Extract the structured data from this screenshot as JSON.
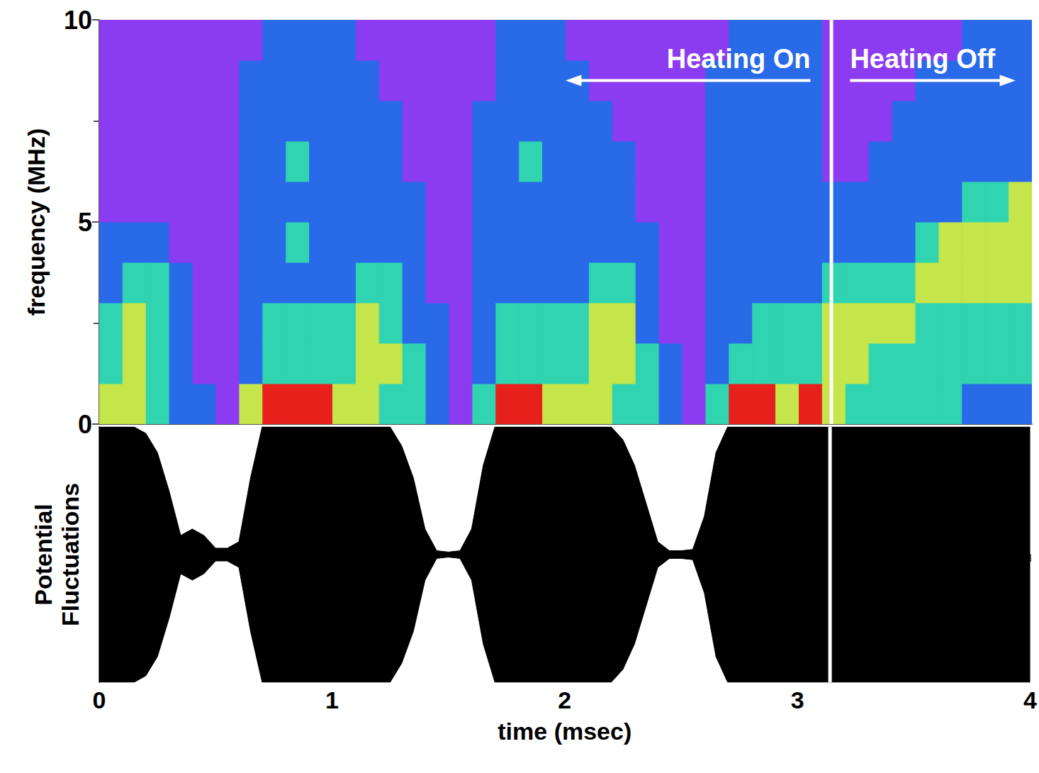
{
  "chart_data": [
    {
      "type": "heatmap",
      "ylabel": "frequency (MHz)",
      "xlim": [
        0,
        4
      ],
      "ylim": [
        0,
        10
      ],
      "yticks": [
        0,
        5,
        10
      ],
      "tick_labels": "y",
      "x_bins": [
        0,
        0.1,
        0.2,
        0.3,
        0.4,
        0.5,
        0.6,
        0.7,
        0.8,
        0.9,
        1,
        1.1,
        1.2,
        1.3,
        1.4,
        1.5,
        1.6,
        1.7,
        1.8,
        1.9,
        2,
        2.1,
        2.2,
        2.3,
        2.4,
        2.5,
        2.6,
        2.7,
        2.8,
        2.9,
        3,
        3.1,
        3.2,
        3.3,
        3.4,
        3.5,
        3.6,
        3.7,
        3.8,
        3.9,
        4
      ],
      "y_bins": [
        0,
        1,
        2,
        3,
        4,
        5,
        6,
        7,
        8,
        9,
        10
      ],
      "cells": [
        [
          3,
          2,
          2,
          1,
          1,
          0,
          0,
          0,
          0,
          0
        ],
        [
          3,
          3,
          3,
          2,
          1,
          0,
          0,
          0,
          0,
          0
        ],
        [
          2,
          2,
          2,
          2,
          1,
          0,
          0,
          0,
          0,
          0
        ],
        [
          1,
          1,
          1,
          1,
          0,
          0,
          0,
          0,
          0,
          0
        ],
        [
          1,
          0,
          0,
          0,
          0,
          0,
          0,
          0,
          0,
          0
        ],
        [
          0,
          0,
          0,
          0,
          0,
          0,
          0,
          0,
          0,
          0
        ],
        [
          3,
          1,
          1,
          1,
          1,
          1,
          1,
          1,
          1,
          0
        ],
        [
          4,
          2,
          2,
          1,
          1,
          1,
          1,
          1,
          1,
          1
        ],
        [
          4,
          2,
          2,
          1,
          2,
          1,
          2,
          1,
          1,
          1
        ],
        [
          4,
          2,
          2,
          1,
          1,
          1,
          1,
          1,
          1,
          1
        ],
        [
          3,
          2,
          2,
          1,
          1,
          1,
          1,
          1,
          1,
          1
        ],
        [
          3,
          3,
          3,
          2,
          1,
          1,
          1,
          1,
          1,
          0
        ],
        [
          2,
          3,
          2,
          2,
          1,
          1,
          1,
          1,
          0,
          0
        ],
        [
          2,
          2,
          1,
          1,
          1,
          1,
          0,
          0,
          0,
          0
        ],
        [
          1,
          1,
          1,
          0,
          0,
          0,
          0,
          0,
          0,
          0
        ],
        [
          0,
          0,
          0,
          0,
          0,
          0,
          0,
          0,
          0,
          0
        ],
        [
          2,
          1,
          1,
          1,
          1,
          1,
          1,
          1,
          0,
          0
        ],
        [
          4,
          2,
          2,
          1,
          1,
          1,
          1,
          1,
          1,
          1
        ],
        [
          4,
          2,
          2,
          1,
          1,
          1,
          2,
          1,
          1,
          1
        ],
        [
          3,
          2,
          2,
          1,
          1,
          1,
          1,
          1,
          1,
          1
        ],
        [
          3,
          2,
          2,
          1,
          1,
          1,
          1,
          1,
          1,
          0
        ],
        [
          3,
          3,
          3,
          2,
          1,
          1,
          1,
          1,
          0,
          0
        ],
        [
          2,
          3,
          3,
          2,
          1,
          1,
          1,
          0,
          0,
          0
        ],
        [
          2,
          2,
          1,
          1,
          1,
          0,
          0,
          0,
          0,
          0
        ],
        [
          1,
          1,
          0,
          0,
          0,
          0,
          0,
          0,
          0,
          0
        ],
        [
          0,
          0,
          0,
          0,
          0,
          0,
          0,
          0,
          0,
          0
        ],
        [
          2,
          1,
          1,
          1,
          1,
          1,
          1,
          1,
          1,
          0
        ],
        [
          4,
          2,
          1,
          1,
          1,
          1,
          1,
          1,
          1,
          1
        ],
        [
          4,
          2,
          2,
          1,
          1,
          1,
          1,
          1,
          1,
          1
        ],
        [
          3,
          2,
          2,
          1,
          1,
          1,
          1,
          1,
          1,
          1
        ],
        [
          4,
          2,
          2,
          1,
          1,
          1,
          1,
          1,
          1,
          1
        ],
        [
          3,
          3,
          3,
          2,
          1,
          1,
          0,
          0,
          0,
          0
        ],
        [
          2,
          3,
          3,
          2,
          1,
          1,
          0,
          0,
          0,
          0
        ],
        [
          2,
          2,
          3,
          2,
          1,
          1,
          1,
          0,
          0,
          0
        ],
        [
          2,
          2,
          3,
          2,
          1,
          1,
          1,
          1,
          0,
          0
        ],
        [
          2,
          2,
          2,
          3,
          2,
          1,
          1,
          1,
          1,
          0
        ],
        [
          2,
          2,
          2,
          3,
          3,
          1,
          1,
          1,
          1,
          0
        ],
        [
          1,
          2,
          2,
          3,
          3,
          2,
          1,
          1,
          1,
          1
        ],
        [
          1,
          2,
          2,
          3,
          3,
          2,
          1,
          1,
          1,
          1
        ],
        [
          1,
          2,
          2,
          3,
          3,
          3,
          1,
          1,
          1,
          1
        ]
      ],
      "color_range": [
        0,
        4
      ],
      "marker_line": 3.14,
      "annotations": [
        {
          "text": "Heating On",
          "arrow": [
            3.05,
            2.0
          ],
          "y": 8.5
        },
        {
          "text": "Heating Off",
          "arrow": [
            3.22,
            3.93
          ],
          "y": 8.5
        }
      ]
    },
    {
      "type": "area",
      "ylabel": "Potential Fluctuations",
      "xlabel": "time (msec)",
      "xlim": [
        0,
        4
      ],
      "ylim": [
        -1,
        1
      ],
      "xticks": [
        0,
        1,
        2,
        3,
        4
      ],
      "tick_labels": "x",
      "color": "#000000",
      "marker_line": 3.14,
      "x": [
        0,
        0.05,
        0.1,
        0.15,
        0.2,
        0.25,
        0.3,
        0.35,
        0.4,
        0.45,
        0.5,
        0.55,
        0.6,
        0.65,
        0.7,
        0.75,
        0.8,
        0.85,
        0.9,
        0.95,
        1,
        1.05,
        1.1,
        1.15,
        1.2,
        1.25,
        1.3,
        1.35,
        1.4,
        1.45,
        1.5,
        1.55,
        1.6,
        1.65,
        1.7,
        1.75,
        1.8,
        1.85,
        1.9,
        1.95,
        2,
        2.05,
        2.1,
        2.15,
        2.2,
        2.25,
        2.3,
        2.35,
        2.4,
        2.45,
        2.5,
        2.55,
        2.6,
        2.65,
        2.7,
        2.75,
        2.8,
        2.85,
        2.9,
        2.95,
        3,
        3.05,
        3.1,
        3.15,
        3.2,
        3.25,
        3.3,
        3.35,
        3.4,
        3.45,
        3.5,
        3.55,
        3.6,
        3.65,
        3.7,
        3.75,
        3.8,
        3.85,
        3.9,
        3.95,
        4
      ],
      "upper": [
        1,
        1,
        1,
        1,
        0.95,
        0.8,
        0.5,
        0.15,
        0.2,
        0.15,
        0.05,
        0.05,
        0.1,
        0.6,
        1,
        1,
        1,
        1,
        1,
        1,
        1,
        1,
        1,
        1,
        1,
        1,
        0.85,
        0.6,
        0.2,
        0.03,
        0.02,
        0.03,
        0.2,
        0.7,
        1,
        1,
        1,
        1,
        1,
        1,
        1,
        1,
        1,
        1,
        1,
        0.9,
        0.7,
        0.4,
        0.1,
        0.03,
        0.03,
        0.04,
        0.3,
        0.8,
        1,
        1,
        1,
        1,
        1,
        1,
        1,
        1,
        1,
        1,
        1,
        1,
        1,
        1,
        1,
        1,
        1,
        1,
        1,
        1,
        1,
        1,
        1,
        1,
        1,
        1,
        1
      ],
      "lower": [
        -1,
        -1,
        -1,
        -1,
        -0.95,
        -0.8,
        -0.5,
        -0.15,
        -0.2,
        -0.15,
        -0.05,
        -0.05,
        -0.1,
        -0.6,
        -1,
        -1,
        -1,
        -1,
        -1,
        -1,
        -1,
        -1,
        -1,
        -1,
        -1,
        -1,
        -0.85,
        -0.6,
        -0.2,
        -0.03,
        -0.02,
        -0.03,
        -0.2,
        -0.7,
        -1,
        -1,
        -1,
        -1,
        -1,
        -1,
        -1,
        -1,
        -1,
        -1,
        -1,
        -0.9,
        -0.7,
        -0.4,
        -0.1,
        -0.03,
        -0.03,
        -0.04,
        -0.3,
        -0.8,
        -1,
        -1,
        -1,
        -1,
        -1,
        -1,
        -1,
        -1,
        -1,
        -1,
        -1,
        -1,
        -1,
        -1,
        -1,
        -1,
        -1,
        -1,
        -1,
        -1,
        -1,
        -1,
        -1,
        -1,
        -1,
        -1,
        -1
      ]
    }
  ]
}
